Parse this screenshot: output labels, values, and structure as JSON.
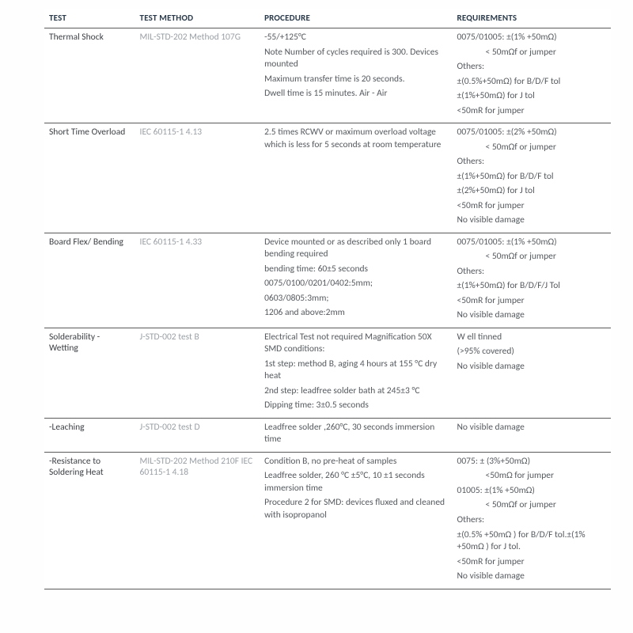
{
  "headers": {
    "test": "TEST",
    "method": "TEST METHOD",
    "procedure": "PROCEDURE",
    "requirements": "REQUIREMENTS"
  },
  "rows": [
    {
      "test": "Thermal Shock",
      "method": "MIL-STD-202 Method 107G",
      "procedure": [
        "-55/+125°C",
        "Note Number of cycles required is 300. Devices mounted",
        "Maximum transfer time is 20 seconds.",
        "Dwell time is 15 minutes. Air - Air"
      ],
      "requirements": [
        {
          "t": "0075/01005: ±(1% +50mΩ)"
        },
        {
          "t": "< 50mΩf or jumper",
          "i": true
        },
        {
          "t": "Others:"
        },
        {
          "t": "±(0.5%+50mΩ) for B/D/F tol"
        },
        {
          "t": "±(1%+50mΩ) for J tol"
        },
        {
          "t": "<50mR for jumper"
        }
      ]
    },
    {
      "test": "Short Time Overload",
      "method": "IEC 60115-1 4.13",
      "procedure": [
        "2.5 times RCWV or maximum overload voltage which is less for 5 seconds at room temperature"
      ],
      "requirements": [
        {
          "t": "0075/01005: ±(2% +50mΩ)"
        },
        {
          "t": "< 50mΩf or jumper",
          "i": true
        },
        {
          "t": "Others:"
        },
        {
          "t": "±(1%+50mΩ) for B/D/F tol"
        },
        {
          "t": "±(2%+50mΩ) for J tol"
        },
        {
          "t": "<50mR for jumper"
        },
        {
          "t": "No visible damage"
        }
      ]
    },
    {
      "test": "Board Flex/ Bending",
      "method": "IEC 60115-1 4.33",
      "procedure": [
        "Device mounted or as described only 1 board bending required",
        "bending time: 60±5 seconds",
        "0075/0100/0201/0402:5mm;",
        "0603/0805:3mm;",
        "1206 and above:2mm"
      ],
      "requirements": [
        {
          "t": "0075/01005: ±(1% +50mΩ)"
        },
        {
          "t": "< 50mΩf or jumper",
          "i": true
        },
        {
          "t": "Others:"
        },
        {
          "t": "±(1%+50mΩ) for B/D/F/J Tol"
        },
        {
          "t": "<50mR for jumper"
        },
        {
          "t": "No visible damage"
        }
      ]
    },
    {
      "test": "Solderability - Wetting",
      "method": "J-STD-002 test B",
      "procedure": [
        "Electrical Test not required Magnification 50X SMD conditions:",
        "1st step: method B, aging 4 hours at 155 °C dry heat",
        "2nd step: leadfree solder bath at 245±3 °C",
        "Dipping time: 3±0.5 seconds"
      ],
      "requirements": [
        {
          "t": "W ell tinned"
        },
        {
          "t": "(>95% covered)"
        },
        {
          "t": "No visible damage"
        }
      ]
    },
    {
      "test": "-Leaching",
      "method": "J-STD-002 test D",
      "procedure": [
        "Leadfree solder ,260°C, 30 seconds immersion time"
      ],
      "requirements": [
        {
          "t": "No visible damage"
        }
      ]
    },
    {
      "test": "-Resistance to Soldering Heat",
      "method": "MIL-STD-202 Method 210F IEC 60115-1 4.18",
      "procedure": [
        "Condition B, no pre-heat of samples",
        "Leadfree solder, 260 °C ±5°C, 10 ±1 seconds immersion time",
        "Procedure 2 for SMD: devices fluxed and cleaned with isopropanol"
      ],
      "requirements": [
        {
          "t": "0075: ± (3%+50mΩ)"
        },
        {
          "t": "<50mΩ  for jumper",
          "i": true
        },
        {
          "t": "01005: ±(1% +50mΩ)"
        },
        {
          "t": "< 50mΩf or jumper",
          "i": true
        },
        {
          "t": "Others:"
        },
        {
          "t": "±(0.5% +50mΩ ) for B/D/F tol.±(1% +50mΩ ) for J tol."
        },
        {
          "t": "<50mR for jumper"
        },
        {
          "t": "No visible damage"
        }
      ]
    }
  ]
}
